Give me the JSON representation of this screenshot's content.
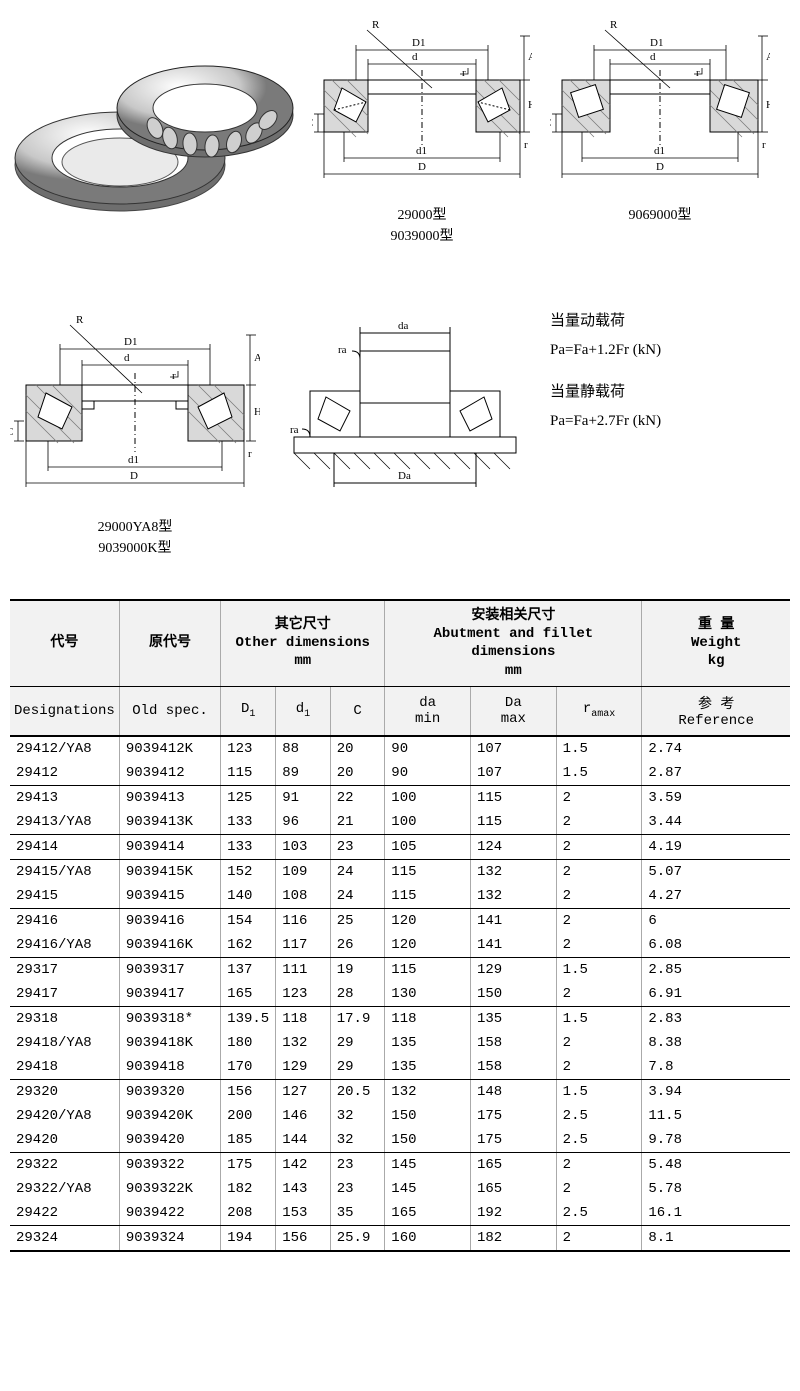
{
  "diagrams": {
    "cap1_a": "29000型",
    "cap1_b": "9039000型",
    "cap2": "9069000型",
    "cap3_a": "29000YA8型",
    "cap3_b": "9039000K型",
    "dim_labels": [
      "R",
      "D1",
      "d",
      "r",
      "A",
      "H",
      "C",
      "d1",
      "D",
      "da",
      "ra",
      "Da"
    ]
  },
  "formulas": {
    "l1": "当量动载荷",
    "l2": "Pa=Fa+1.2Fr (kN)",
    "l3": "当量静载荷",
    "l4": "Pa=Fa+2.7Fr (kN)"
  },
  "table": {
    "head1": {
      "c1": "代号",
      "c2": "原代号",
      "c3a": "其它尺寸",
      "c3b": "Other dimensions",
      "c3c": "mm",
      "c4a": "安装相关尺寸",
      "c4b": "Abutment and fillet dimensions",
      "c4c": "mm",
      "c5a": "重  量",
      "c5b": "Weight",
      "c5c": "kg"
    },
    "head2": {
      "c1": "Designations",
      "c2": "Old spec.",
      "D1": "D",
      "D1s": "1",
      "d1": "d",
      "d1s": "1",
      "C": "C",
      "da": "da",
      "da2": "min",
      "Da": "Da",
      "Da2": "max",
      "ra": "r",
      "ras": "amax",
      "ref_a": "参 考",
      "ref_b": "Reference"
    },
    "groups": [
      [
        [
          "29412/YA8",
          "9039412K",
          "123",
          "88",
          "20",
          "90",
          "107",
          "1.5",
          "2.74"
        ],
        [
          "29412",
          "9039412",
          "115",
          "89",
          "20",
          "90",
          "107",
          "1.5",
          "2.87"
        ]
      ],
      [
        [
          "29413",
          "9039413",
          "125",
          "91",
          "22",
          "100",
          "115",
          "2",
          "3.59"
        ],
        [
          "29413/YA8",
          "9039413K",
          "133",
          "96",
          "21",
          "100",
          "115",
          "2",
          "3.44"
        ]
      ],
      [
        [
          "29414",
          "9039414",
          "133",
          "103",
          "23",
          "105",
          "124",
          "2",
          "4.19"
        ]
      ],
      [
        [
          "29415/YA8",
          "9039415K",
          "152",
          "109",
          "24",
          "115",
          "132",
          "2",
          "5.07"
        ],
        [
          "29415",
          "9039415",
          "140",
          "108",
          "24",
          "115",
          "132",
          "2",
          "4.27"
        ]
      ],
      [
        [
          "29416",
          "9039416",
          "154",
          "116",
          "25",
          "120",
          "141",
          "2",
          "6"
        ],
        [
          "29416/YA8",
          "9039416K",
          "162",
          "117",
          "26",
          "120",
          "141",
          "2",
          "6.08"
        ]
      ],
      [
        [
          "29317",
          "9039317",
          "137",
          "111",
          "19",
          "115",
          "129",
          "1.5",
          "2.85"
        ],
        [
          "29417",
          "9039417",
          "165",
          "123",
          "28",
          "130",
          "150",
          "2",
          "6.91"
        ]
      ],
      [
        [
          "29318",
          "9039318*",
          "139.5",
          "118",
          "17.9",
          "118",
          "135",
          "1.5",
          "2.83"
        ],
        [
          "29418/YA8",
          "9039418K",
          "180",
          "132",
          "29",
          "135",
          "158",
          "2",
          "8.38"
        ],
        [
          "29418",
          "9039418",
          "170",
          "129",
          "29",
          "135",
          "158",
          "2",
          "7.8"
        ]
      ],
      [
        [
          "29320",
          "9039320",
          "156",
          "127",
          "20.5",
          "132",
          "148",
          "1.5",
          "3.94"
        ],
        [
          "29420/YA8",
          "9039420K",
          "200",
          "146",
          "32",
          "150",
          "175",
          "2.5",
          "11.5"
        ],
        [
          "29420",
          "9039420",
          "185",
          "144",
          "32",
          "150",
          "175",
          "2.5",
          "9.78"
        ]
      ],
      [
        [
          "29322",
          "9039322",
          "175",
          "142",
          "23",
          "145",
          "165",
          "2",
          "5.48"
        ],
        [
          "29322/YA8",
          "9039322K",
          "182",
          "143",
          "23",
          "145",
          "165",
          "2",
          "5.78"
        ],
        [
          "29422",
          "9039422",
          "208",
          "153",
          "35",
          "165",
          "192",
          "2.5",
          "16.1"
        ]
      ],
      [
        [
          "29324",
          "9039324",
          "194",
          "156",
          "25.9",
          "160",
          "182",
          "2",
          "8.1"
        ]
      ]
    ],
    "col_widths_pct": [
      14,
      13,
      7,
      7,
      7,
      11,
      11,
      11,
      19
    ]
  },
  "style": {
    "border_color": "#000000",
    "header_bg": "#f2f2f2",
    "vline_color": "#aaaaaa",
    "font_size_table": 14,
    "font_size_caption": 14,
    "font_size_formula": 15
  }
}
